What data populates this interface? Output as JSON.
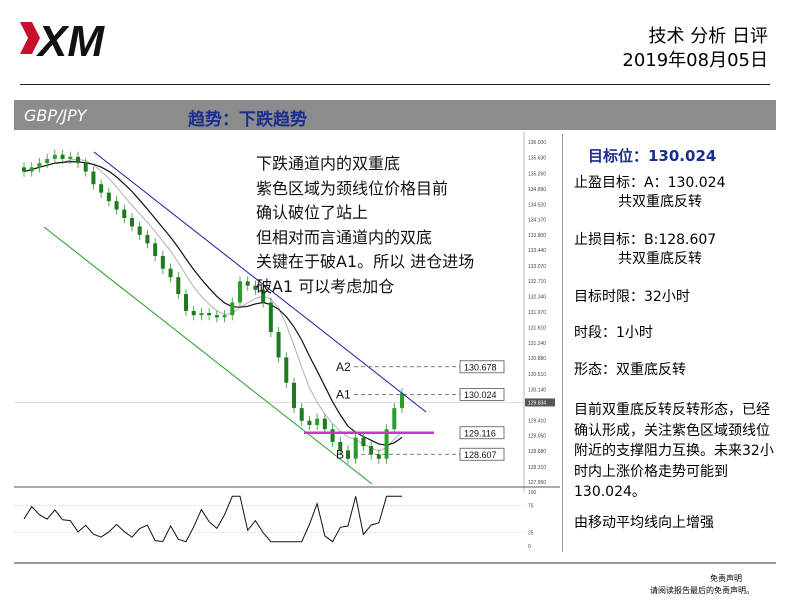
{
  "header": {
    "logo_text": "XM",
    "title": "技术 分析 日评",
    "date": "2019年08月05日"
  },
  "banner": {
    "pair": "GBP/JPY",
    "trend": "趋势：下跌趋势"
  },
  "chart_annotation": "下跌通道内的双重底\n紫色区域为颈线位价格目前\n确认破位了站上\n但相对而言通道内的双底\n关键在于破A1。所以 进仓进场\n破A1 可以考虑加仓",
  "chart_data": {
    "type": "line",
    "title": "",
    "price_axis": {
      "ylim": [
        127.95,
        136.0
      ],
      "ticks": [
        "136.000",
        "135.630",
        "135.260",
        "134.890",
        "134.520",
        "134.170",
        "133.800",
        "133.440",
        "133.070",
        "132.710",
        "132.340",
        "131.970",
        "131.610",
        "131.240",
        "130.880",
        "130.510",
        "130.140",
        "129.780",
        "129.410",
        "129.050",
        "128.680",
        "128.310",
        "127.950"
      ],
      "current_price": "129.834"
    },
    "close_series": [
      135.3,
      135.4,
      135.5,
      135.6,
      135.7,
      135.6,
      135.65,
      135.5,
      135.3,
      135.0,
      134.8,
      134.6,
      134.4,
      134.2,
      134.0,
      133.8,
      133.6,
      133.3,
      133.0,
      132.8,
      132.4,
      132.0,
      131.9,
      131.95,
      131.9,
      131.85,
      131.9,
      132.2,
      132.7,
      132.6,
      132.5,
      132.2,
      131.5,
      130.9,
      130.3,
      129.7,
      129.4,
      129.3,
      129.45,
      129.2,
      128.9,
      128.7,
      128.5,
      129.0,
      128.8,
      128.6,
      128.5,
      129.2,
      129.7,
      130.05
    ],
    "moving_averages": [
      {
        "name": "MA slow",
        "color": "#111111"
      },
      {
        "name": "MA fast",
        "color": "#b0b0b0"
      }
    ],
    "levels": [
      {
        "label": "130.678",
        "value": 130.678,
        "marker": "A2"
      },
      {
        "label": "130.024",
        "value": 130.024,
        "marker": "A1"
      },
      {
        "label": "129.116",
        "value": 129.116,
        "marker": "neckline"
      },
      {
        "label": "128.607",
        "value": 128.607,
        "marker": "B"
      }
    ],
    "markers": [
      "A2",
      "A1",
      "B"
    ],
    "oscillator_ticks": [
      "100",
      "75",
      "25",
      "0"
    ],
    "colors": {
      "up": "#2a9d2a",
      "down": "#2a9d2a",
      "channel_upper": "#1a1aa0",
      "channel_lower": "#22a022",
      "neckline": "#cc33cc"
    }
  },
  "sidebar": {
    "target_level": "目标位：130.024",
    "take_profit_label": "止盈目标：A：130.024",
    "take_profit_sub": "共双重底反转",
    "stop_loss_label": "止损目标：B:128.607",
    "stop_loss_sub": "共双重底反转",
    "time_limit": "目标时限：32小时",
    "period": "时段：1小时",
    "pattern": "形态：双重底反转",
    "description": "目前双重底反转反转形态，已经确认形成，关注紫色区域颈线位附近的支撑阻力互换。未来32小时内上涨价格走势可能到130.024。",
    "ma_note": "由移动平均线向上增强"
  },
  "footer": {
    "disclaimer_title": "免责声明",
    "disclaimer_text": "请阅读报告最后的免责声明。"
  }
}
